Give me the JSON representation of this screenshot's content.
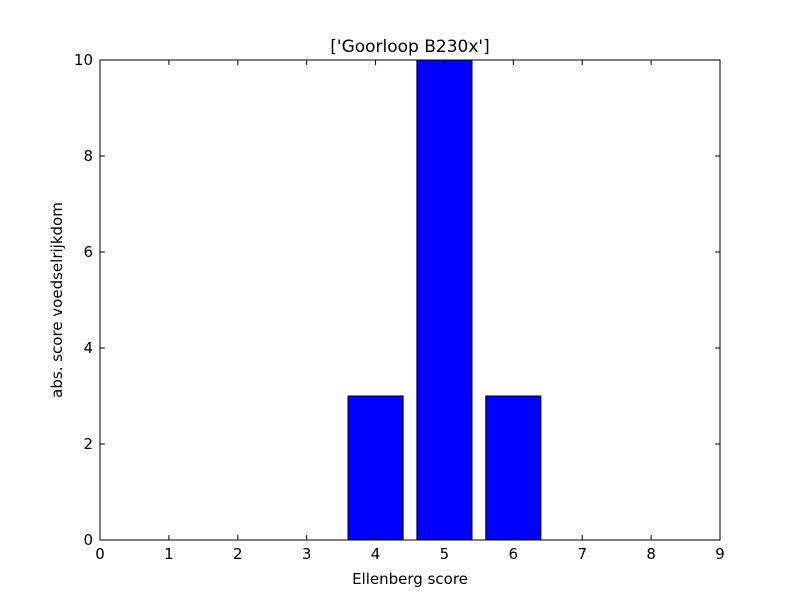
{
  "chart_data": {
    "type": "bar",
    "title": "['Goorloop B230x']",
    "xlabel": "Ellenberg score",
    "ylabel": "abs. score voedselrijkdom",
    "xlim": [
      0,
      9
    ],
    "ylim": [
      0,
      10
    ],
    "xticks": [
      0,
      1,
      2,
      3,
      4,
      5,
      6,
      7,
      8,
      9
    ],
    "yticks": [
      0,
      2,
      4,
      6,
      8,
      10
    ],
    "bar_width": 0.8,
    "bars": [
      {
        "x": 1,
        "value": 0
      },
      {
        "x": 2,
        "value": 0
      },
      {
        "x": 3,
        "value": 0
      },
      {
        "x": 4,
        "value": 3
      },
      {
        "x": 5,
        "value": 10
      },
      {
        "x": 6,
        "value": 3
      },
      {
        "x": 7,
        "value": 0
      },
      {
        "x": 8,
        "value": 0
      }
    ],
    "bar_color": "#0000ff",
    "edge_color": "#000000",
    "grid": false
  }
}
